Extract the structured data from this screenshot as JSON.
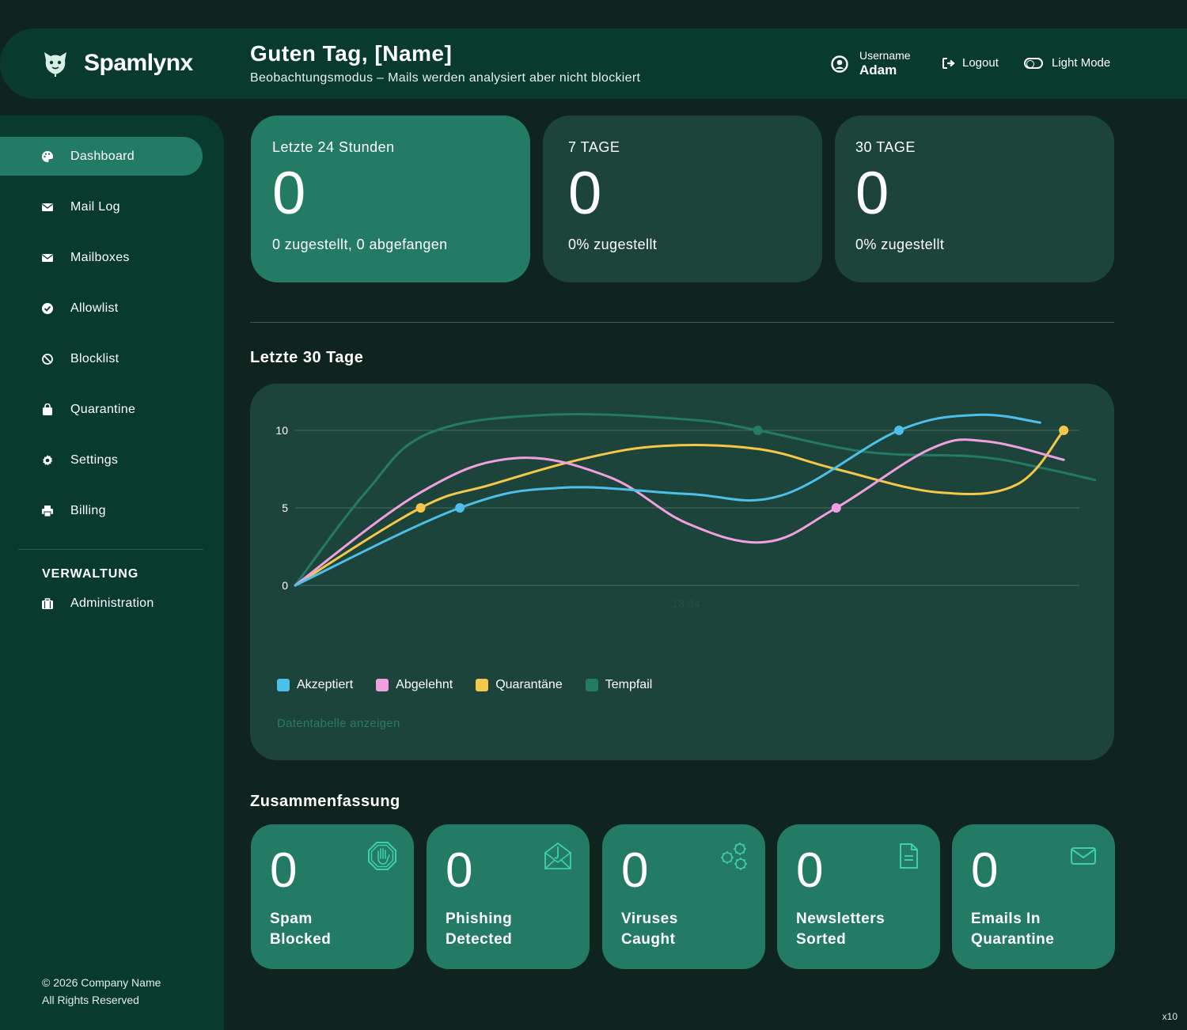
{
  "header": {
    "brand": "Spamlynx",
    "greeting": "Guten Tag, [Name]",
    "subtitle": "Beobachtungsmodus – Mails werden analysiert aber nicht blockiert",
    "user_label": "Username",
    "user_name": "Adam",
    "logout": "Logout",
    "light_mode": "Light Mode"
  },
  "sidebar": {
    "items": [
      {
        "label": "Dashboard",
        "icon": "palette-icon",
        "active": true
      },
      {
        "label": "Mail Log",
        "icon": "envelope-icon"
      },
      {
        "label": "Mailboxes",
        "icon": "envelope-icon"
      },
      {
        "label": "Allowlist",
        "icon": "check-circle-icon"
      },
      {
        "label": "Blocklist",
        "icon": "ban-icon"
      },
      {
        "label": "Quarantine",
        "icon": "bag-icon"
      },
      {
        "label": "Settings",
        "icon": "gear-icon"
      },
      {
        "label": "Billing",
        "icon": "printer-icon"
      }
    ],
    "section_label": "VERWALTUNG",
    "admin_item": {
      "label": "Administration",
      "icon": "briefcase-icon"
    },
    "footer_line1": "© 2026 Company Name",
    "footer_line2": "All Rights Reserved"
  },
  "stats": [
    {
      "label": "Letzte 24 Stunden",
      "value": "0",
      "sub": "0 zugestellt, 0 abgefangen"
    },
    {
      "label": "7 TAGE",
      "value": "0",
      "sub": "0% zugestellt"
    },
    {
      "label": "30 TAGE",
      "value": "0",
      "sub": "0% zugestellt"
    }
  ],
  "chart_section_title": "Letzte 30 Tage",
  "chart_data": {
    "type": "line",
    "yticks": [
      "10",
      "5",
      "0"
    ],
    "ylim": [
      0,
      10
    ],
    "xlabel_visible": "13.04",
    "grid": true,
    "legend_placement": "bottom-left",
    "series": [
      {
        "name": "Akzeptiert",
        "color": "#4cc0e8",
        "points": [
          [
            0,
            0
          ],
          [
            0.21,
            5
          ],
          [
            0.34,
            6.3
          ],
          [
            0.5,
            5.9
          ],
          [
            0.62,
            5.8
          ],
          [
            0.77,
            10
          ],
          [
            0.87,
            11
          ],
          [
            0.95,
            10.5
          ]
        ]
      },
      {
        "name": "Abgelehnt",
        "color": "#f0a0e0",
        "points": [
          [
            0,
            0
          ],
          [
            0.16,
            6
          ],
          [
            0.28,
            8.2
          ],
          [
            0.4,
            7
          ],
          [
            0.5,
            4
          ],
          [
            0.6,
            2.8
          ],
          [
            0.69,
            5
          ],
          [
            0.81,
            8.8
          ],
          [
            0.88,
            9.3
          ],
          [
            0.98,
            8.1
          ]
        ]
      },
      {
        "name": "Quarantäne",
        "color": "#f5c84c",
        "points": [
          [
            0,
            0
          ],
          [
            0.16,
            5
          ],
          [
            0.25,
            6.5
          ],
          [
            0.37,
            8.2
          ],
          [
            0.47,
            9
          ],
          [
            0.59,
            8.8
          ],
          [
            0.69,
            7.5
          ],
          [
            0.82,
            6
          ],
          [
            0.92,
            6.5
          ],
          [
            0.98,
            10
          ]
        ]
      },
      {
        "name": "Tempfail",
        "color": "#237b63",
        "points": [
          [
            0,
            0
          ],
          [
            0.09,
            6
          ],
          [
            0.17,
            9.8
          ],
          [
            0.32,
            11
          ],
          [
            0.5,
            10.7
          ],
          [
            0.59,
            10
          ],
          [
            0.73,
            8.6
          ],
          [
            0.87,
            8.3
          ],
          [
            0.95,
            7.6
          ],
          [
            1.02,
            6.8
          ]
        ]
      }
    ],
    "markers": [
      {
        "series": "Quarantäne",
        "at": [
          0.16,
          5
        ]
      },
      {
        "series": "Akzeptiert",
        "at": [
          0.21,
          5
        ]
      },
      {
        "series": "Tempfail",
        "at": [
          0.59,
          10
        ]
      },
      {
        "series": "Abgelehnt",
        "at": [
          0.69,
          5
        ]
      },
      {
        "series": "Akzeptiert",
        "at": [
          0.77,
          10
        ]
      },
      {
        "series": "Quarantäne",
        "at": [
          0.98,
          10
        ]
      }
    ]
  },
  "chart_link": "Datentabelle anzeigen",
  "summary_title": "Zusammenfassung",
  "summary": [
    {
      "value": "0",
      "label": "Spam\nBlocked",
      "icon": "stop-hand-icon"
    },
    {
      "value": "0",
      "label": "Phishing\nDetected",
      "icon": "phishing-envelope-icon"
    },
    {
      "value": "0",
      "label": "Viruses\nCaught",
      "icon": "virus-icon"
    },
    {
      "value": "0",
      "label": "Newsletters\nSorted",
      "icon": "document-icon"
    },
    {
      "value": "0",
      "label": "Emails In\nQuarantine",
      "icon": "envelope-icon"
    }
  ],
  "colors": {
    "accent": "#237b63",
    "panel": "#1d443a",
    "sidebar": "#083a2e",
    "background": "#0f241f",
    "icon_accent": "#3ed1a4"
  },
  "corner_label": "x10"
}
